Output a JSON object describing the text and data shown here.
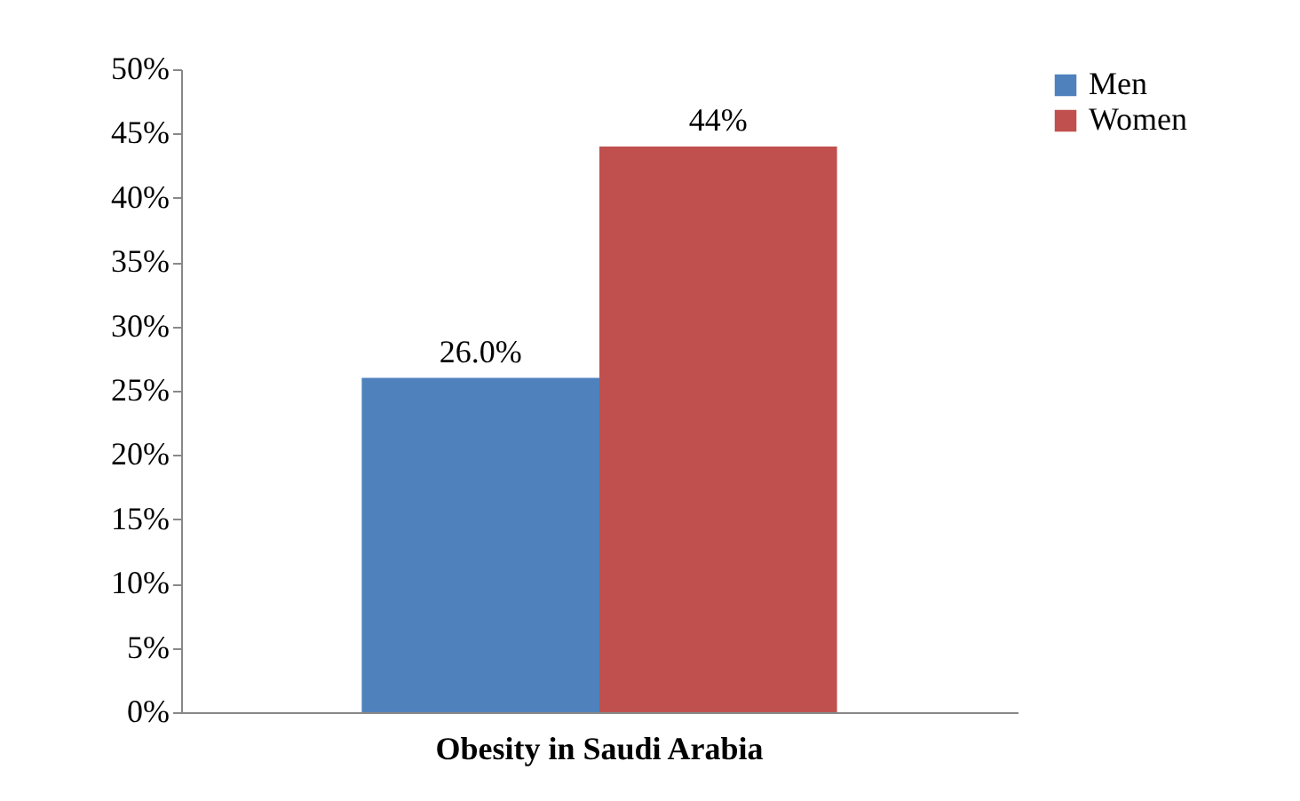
{
  "chart_data": {
    "type": "bar",
    "categories": [
      "Obesity in Saudi Arabia"
    ],
    "series": [
      {
        "name": "Men",
        "color": "#4f81bd",
        "values": [
          26
        ],
        "value_labels": [
          "26.0%"
        ]
      },
      {
        "name": "Women",
        "color": "#c0504d",
        "values": [
          44
        ],
        "value_labels": [
          "44%"
        ]
      }
    ],
    "ylim": [
      0,
      50
    ],
    "yticks": [
      {
        "value": 0,
        "label": "0%"
      },
      {
        "value": 5,
        "label": "5%"
      },
      {
        "value": 10,
        "label": "10%"
      },
      {
        "value": 15,
        "label": "15%"
      },
      {
        "value": 20,
        "label": "20%"
      },
      {
        "value": 25,
        "label": "25%"
      },
      {
        "value": 30,
        "label": "30%"
      },
      {
        "value": 35,
        "label": "35%"
      },
      {
        "value": 40,
        "label": "40%"
      },
      {
        "value": 45,
        "label": "45%"
      },
      {
        "value": 50,
        "label": "50%"
      }
    ],
    "grid": false,
    "legend": "right"
  }
}
